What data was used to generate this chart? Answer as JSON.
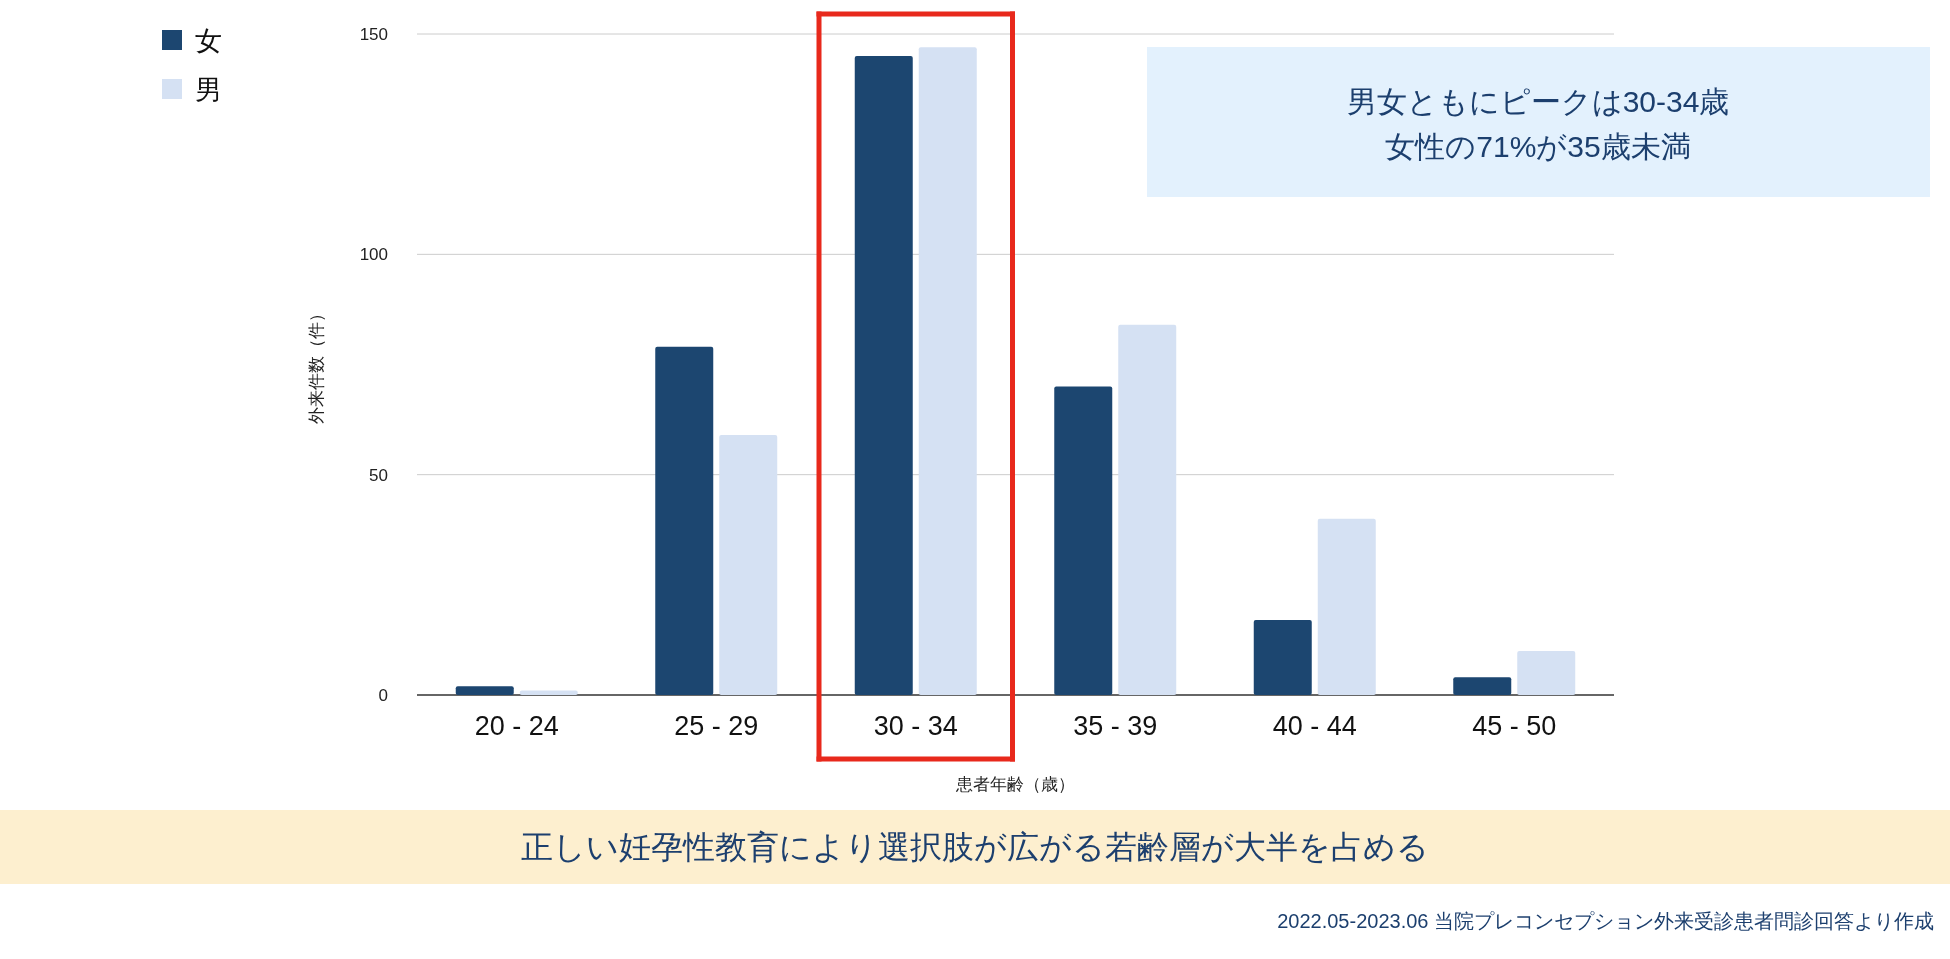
{
  "chart_data": {
    "type": "bar",
    "xlabel": "患者年齢（歳）",
    "ylabel": "外来件数（件）",
    "categories": [
      "20 - 24",
      "25 - 29",
      "30 - 34",
      "35 - 39",
      "40 - 44",
      "45 - 50"
    ],
    "series": [
      {
        "name": "女",
        "color": "#1c4670",
        "values": [
          2,
          79,
          145,
          70,
          17,
          4
        ]
      },
      {
        "name": "男",
        "color": "#d5e1f3",
        "values": [
          1,
          59,
          147,
          84,
          40,
          10
        ]
      }
    ],
    "ylim": [
      0,
      150
    ],
    "yticks": [
      0,
      50,
      100,
      150
    ],
    "grid": "y",
    "legend": "top left",
    "annotations": [
      "男女ともにピークは30-34歳",
      "女性の71%が35歳未満",
      "正しい妊孕性教育により選択肢が広がる若齢層が大半を占める",
      "2022.05-2023.06 当院プレコンセプション外来受診患者問診回答より作成"
    ]
  }
}
